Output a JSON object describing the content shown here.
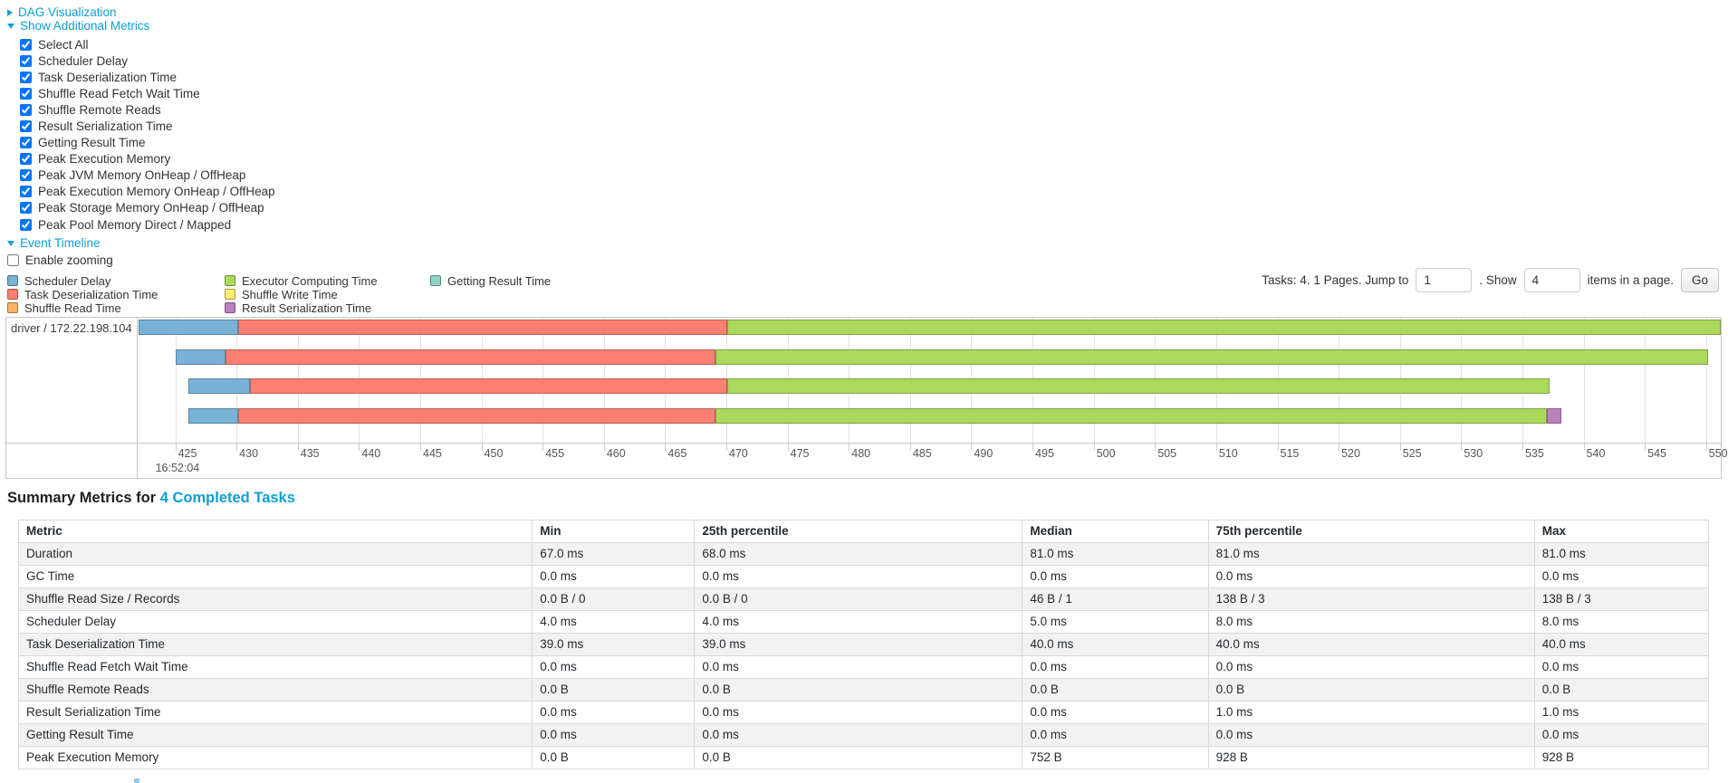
{
  "controls": {
    "dag_label": "DAG Visualization",
    "metrics_label": "Show Additional Metrics",
    "event_timeline_label": "Event Timeline",
    "enable_zooming_label": "Enable zooming",
    "metric_checkboxes": [
      {
        "label": "Select All",
        "checked": true
      },
      {
        "label": "Scheduler Delay",
        "checked": true
      },
      {
        "label": "Task Deserialization Time",
        "checked": true
      },
      {
        "label": "Shuffle Read Fetch Wait Time",
        "checked": true
      },
      {
        "label": "Shuffle Remote Reads",
        "checked": true
      },
      {
        "label": "Result Serialization Time",
        "checked": true
      },
      {
        "label": "Getting Result Time",
        "checked": true
      },
      {
        "label": "Peak Execution Memory",
        "checked": true
      },
      {
        "label": "Peak JVM Memory OnHeap / OffHeap",
        "checked": true
      },
      {
        "label": "Peak Execution Memory OnHeap / OffHeap",
        "checked": true
      },
      {
        "label": "Peak Storage Memory OnHeap / OffHeap",
        "checked": true
      },
      {
        "label": "Peak Pool Memory Direct / Mapped",
        "checked": true
      }
    ]
  },
  "pagination": {
    "text_before": "Tasks: 4. 1 Pages. Jump to",
    "jump_value": "1",
    "text_mid": ". Show",
    "show_value": "4",
    "text_after": "items in a page.",
    "go_label": "Go"
  },
  "colors": {
    "accent": "#0e9fd4"
  },
  "chart_data": {
    "type": "timeline",
    "title": "Event Timeline",
    "row_label": "driver / 172.22.198.104",
    "x_axis": {
      "domain_min": 422.0,
      "domain_max": 551.2,
      "tick_min": 425,
      "tick_max": 550,
      "tick_step": 5,
      "major_label": "16:52:04",
      "major_at": 425
    },
    "colors": {
      "scheduler-delay": "#79B2D6",
      "task-deserialization": "#FB8072",
      "shuffle-read": "#FDB462",
      "executor-computing": "#ABD95E",
      "shuffle-write": "#FFED6F",
      "result-serialization": "#BC80BD",
      "getting-result": "#8DD3C7"
    },
    "legend": [
      {
        "col": 0,
        "metric": "scheduler-delay",
        "label": "Scheduler Delay"
      },
      {
        "col": 0,
        "metric": "task-deserialization",
        "label": "Task Deserialization Time"
      },
      {
        "col": 0,
        "metric": "shuffle-read",
        "label": "Shuffle Read Time"
      },
      {
        "col": 1,
        "metric": "executor-computing",
        "label": "Executor Computing Time"
      },
      {
        "col": 1,
        "metric": "shuffle-write",
        "label": "Shuffle Write Time"
      },
      {
        "col": 1,
        "metric": "result-serialization",
        "label": "Result Serialization Time"
      },
      {
        "col": 2,
        "metric": "getting-result",
        "label": "Getting Result Time"
      }
    ],
    "tasks": [
      {
        "segments": [
          {
            "metric": "scheduler-delay",
            "start": 422.0,
            "end": 430.1
          },
          {
            "metric": "task-deserialization",
            "start": 430.1,
            "end": 470.1
          },
          {
            "metric": "executor-computing",
            "start": 470.1,
            "end": 551.2
          }
        ]
      },
      {
        "segments": [
          {
            "metric": "scheduler-delay",
            "start": 425.0,
            "end": 429.1
          },
          {
            "metric": "task-deserialization",
            "start": 429.1,
            "end": 469.1
          },
          {
            "metric": "executor-computing",
            "start": 469.1,
            "end": 550.2
          }
        ]
      },
      {
        "segments": [
          {
            "metric": "scheduler-delay",
            "start": 426.1,
            "end": 431.1
          },
          {
            "metric": "task-deserialization",
            "start": 431.1,
            "end": 470.1
          },
          {
            "metric": "executor-computing",
            "start": 470.1,
            "end": 537.2
          }
        ]
      },
      {
        "segments": [
          {
            "metric": "scheduler-delay",
            "start": 426.1,
            "end": 430.1
          },
          {
            "metric": "task-deserialization",
            "start": 430.1,
            "end": 469.1
          },
          {
            "metric": "executor-computing",
            "start": 469.1,
            "end": 537.0
          },
          {
            "metric": "result-serialization",
            "start": 537.0,
            "end": 538.2
          }
        ]
      }
    ]
  },
  "summary": {
    "heading_prefix": "Summary Metrics for",
    "heading_link": "4 Completed Tasks",
    "table": {
      "columns": [
        "Metric",
        "Min",
        "25th percentile",
        "Median",
        "75th percentile",
        "Max"
      ],
      "rows": [
        {
          "metric": "Duration",
          "values": [
            "67.0 ms",
            "68.0 ms",
            "81.0 ms",
            "81.0 ms",
            "81.0 ms"
          ]
        },
        {
          "metric": "GC Time",
          "values": [
            "0.0 ms",
            "0.0 ms",
            "0.0 ms",
            "0.0 ms",
            "0.0 ms"
          ]
        },
        {
          "metric": "Shuffle Read Size / Records",
          "values": [
            "0.0 B / 0",
            "0.0 B / 0",
            "46 B / 1",
            "138 B / 3",
            "138 B / 3"
          ]
        },
        {
          "metric": "Scheduler Delay",
          "values": [
            "4.0 ms",
            "4.0 ms",
            "5.0 ms",
            "8.0 ms",
            "8.0 ms"
          ]
        },
        {
          "metric": "Task Deserialization Time",
          "values": [
            "39.0 ms",
            "39.0 ms",
            "40.0 ms",
            "40.0 ms",
            "40.0 ms"
          ]
        },
        {
          "metric": "Shuffle Read Fetch Wait Time",
          "values": [
            "0.0 ms",
            "0.0 ms",
            "0.0 ms",
            "0.0 ms",
            "0.0 ms"
          ]
        },
        {
          "metric": "Shuffle Remote Reads",
          "values": [
            "0.0 B",
            "0.0 B",
            "0.0 B",
            "0.0 B",
            "0.0 B"
          ]
        },
        {
          "metric": "Result Serialization Time",
          "values": [
            "0.0 ms",
            "0.0 ms",
            "0.0 ms",
            "1.0 ms",
            "1.0 ms"
          ]
        },
        {
          "metric": "Getting Result Time",
          "values": [
            "0.0 ms",
            "0.0 ms",
            "0.0 ms",
            "0.0 ms",
            "0.0 ms"
          ]
        },
        {
          "metric": "Peak Execution Memory",
          "values": [
            "0.0 B",
            "0.0 B",
            "752 B",
            "928 B",
            "928 B"
          ]
        }
      ]
    }
  }
}
